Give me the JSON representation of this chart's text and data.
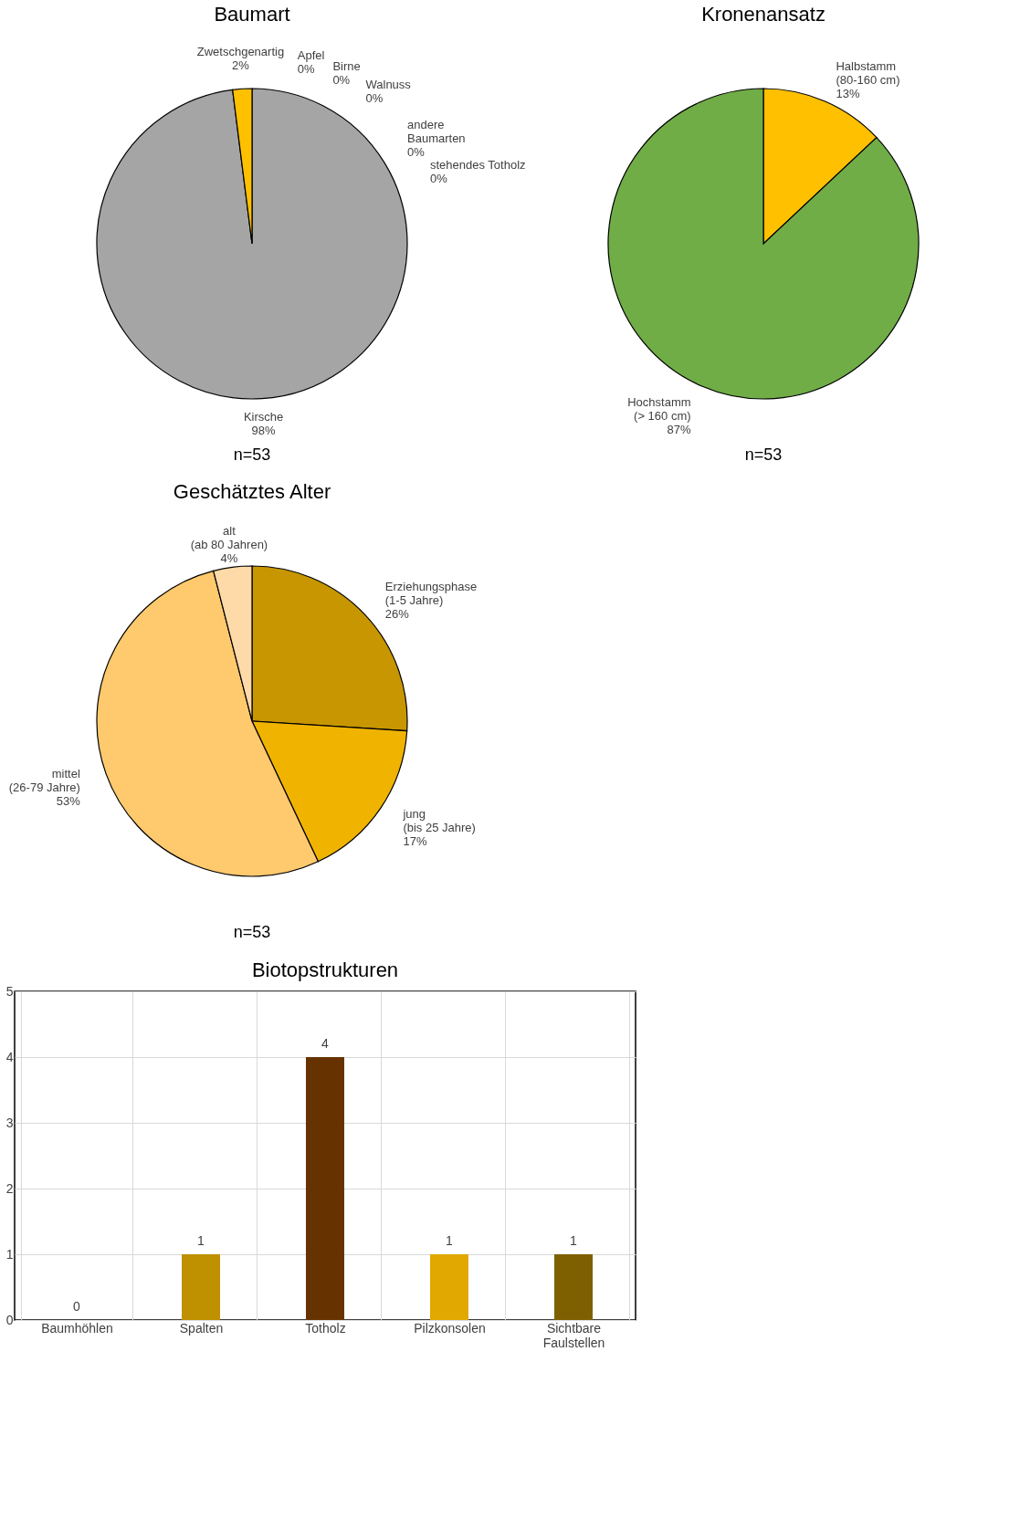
{
  "chart_data": [
    {
      "type": "pie",
      "title": "Baumart",
      "categories": [
        "Apfel",
        "Birne",
        "Walnuss",
        "andere\nBaumarten",
        "stehendes Totholz",
        "Kirsche",
        "Zwetschgenartig"
      ],
      "values": [
        0,
        0,
        0,
        0,
        0,
        98,
        2
      ],
      "colors": [
        "#c00000",
        "#70ad47",
        "#7f6000",
        "#5b9bd5",
        "#404040",
        "#a5a5a5",
        "#ffc000"
      ],
      "value_labels": [
        "0%",
        "0%",
        "0%",
        "0%",
        "0%",
        "98%",
        "2%"
      ],
      "annotations": [
        "n=53"
      ]
    },
    {
      "type": "pie",
      "title": "Kronenansatz",
      "categories": [
        "Halbstamm\n(80-160 cm)",
        "Hochstamm\n(> 160 cm)"
      ],
      "values": [
        13,
        87
      ],
      "colors": [
        "#ffc000",
        "#70ad47"
      ],
      "value_labels": [
        "13%",
        "87%"
      ],
      "annotations": [
        "n=53"
      ]
    },
    {
      "type": "pie",
      "title": "Geschätztes Alter",
      "categories": [
        "Erziehungsphase\n(1-5 Jahre)",
        "jung\n(bis 25 Jahre)",
        "mittel\n(26-79 Jahre)",
        "alt\n(ab 80 Jahren)"
      ],
      "values": [
        26,
        17,
        53,
        4
      ],
      "colors": [
        "#c89600",
        "#f0b400",
        "#ffc96e",
        "#fddaa8"
      ],
      "value_labels": [
        "26%",
        "17%",
        "53%",
        "4%"
      ],
      "annotations": [
        "n=53"
      ]
    },
    {
      "type": "bar",
      "title": "Biotopstrukturen",
      "categories": [
        "Baumhöhlen",
        "Spalten",
        "Totholz",
        "Pilzkonsolen",
        "Sichtbare\nFaulstellen"
      ],
      "values": [
        0,
        1,
        4,
        1,
        1
      ],
      "colors": [
        "#bf9000",
        "#bf9000",
        "#663300",
        "#e0a800",
        "#7f6000"
      ],
      "ylim": [
        0,
        5
      ],
      "yticks": [
        0,
        1,
        2,
        3,
        4,
        5
      ],
      "grid": true,
      "data_labels": true
    }
  ]
}
